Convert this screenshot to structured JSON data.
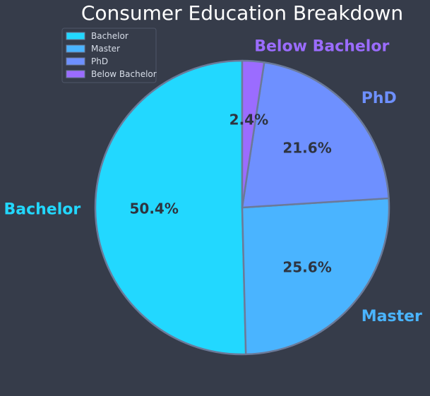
{
  "chart_data": {
    "type": "pie",
    "title": "Consumer Education Breakdown",
    "categories": [
      "Bachelor",
      "Master",
      "PhD",
      "Below Bachelor"
    ],
    "values": [
      50.4,
      25.6,
      21.6,
      2.4
    ],
    "value_labels": [
      "50.4%",
      "25.6%",
      "21.6%",
      "2.4%"
    ],
    "colors": [
      "#22d8ff",
      "#4ab4ff",
      "#6e90ff",
      "#9b6cff"
    ],
    "start": "top",
    "direction": "counterclockwise",
    "legend": "top-left",
    "background": "#363c4a",
    "wedge_edge_color": "#6b7a99"
  }
}
